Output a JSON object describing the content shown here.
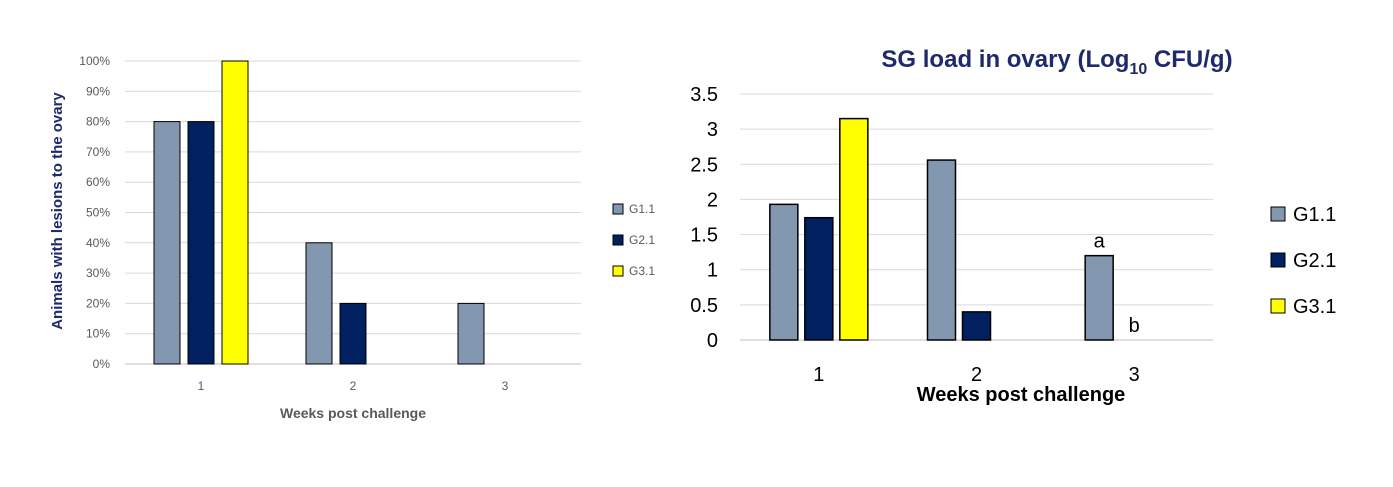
{
  "chart_data": [
    {
      "type": "bar",
      "title": "",
      "xlabel": "Weeks post challenge",
      "ylabel": "Animals with lesions to the ovary",
      "categories": [
        "1",
        "2",
        "3"
      ],
      "ylim": [
        0,
        100
      ],
      "yticks": [
        "0%",
        "10%",
        "20%",
        "30%",
        "40%",
        "50%",
        "60%",
        "70%",
        "80%",
        "90%",
        "100%"
      ],
      "grid": true,
      "legend_position": "right",
      "series": [
        {
          "name": "G1.1",
          "color": "#8497b0",
          "values": [
            80,
            40,
            20
          ]
        },
        {
          "name": "G2.1",
          "color": "#002060",
          "values": [
            80,
            20,
            0
          ]
        },
        {
          "name": "G3.1",
          "color": "#ffff00",
          "values": [
            100,
            0,
            0
          ]
        }
      ]
    },
    {
      "type": "bar",
      "title_main": "SG load in ovary (Log",
      "title_sub": "10",
      "title_end": " CFU/g)",
      "xlabel": "Weeks post challenge",
      "ylabel": "",
      "categories": [
        "1",
        "2",
        "3"
      ],
      "ylim": [
        0,
        3.5
      ],
      "yticks": [
        "0",
        "0.5",
        "1",
        "1.5",
        "2",
        "2.5",
        "3",
        "3.5"
      ],
      "grid": true,
      "legend_position": "right",
      "series": [
        {
          "name": "G1.1",
          "color": "#8497b0",
          "values": [
            1.93,
            2.56,
            1.2
          ]
        },
        {
          "name": "G2.1",
          "color": "#002060",
          "values": [
            1.74,
            0.4,
            0
          ]
        },
        {
          "name": "G3.1",
          "color": "#ffff00",
          "values": [
            3.15,
            0,
            0
          ]
        }
      ],
      "annotations": [
        {
          "text": "a",
          "category": "3",
          "series": "G1.1"
        },
        {
          "text": "b",
          "category": "3",
          "series": "G2.1"
        }
      ]
    }
  ]
}
